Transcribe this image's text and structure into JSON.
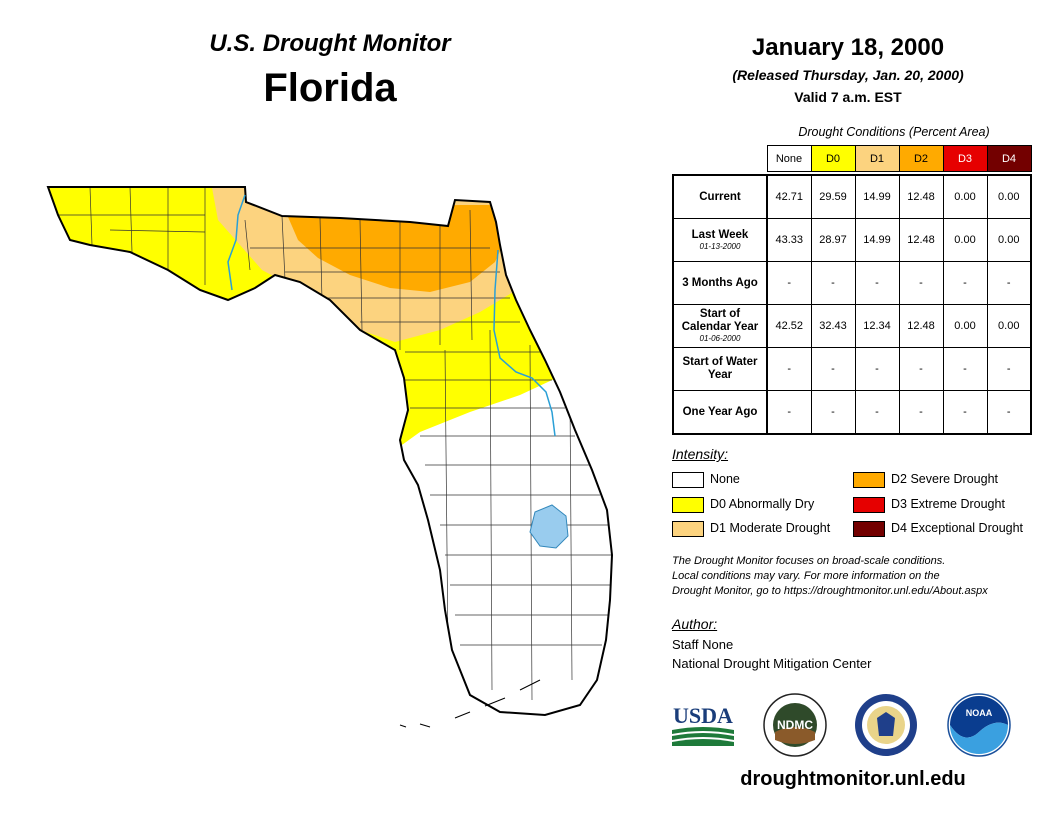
{
  "header": {
    "title": "U.S. Drought Monitor",
    "state": "Florida",
    "date": "January 18, 2000",
    "released": "(Released Thursday, Jan. 20, 2000)",
    "valid": "Valid 7 a.m. EST"
  },
  "table": {
    "caption": "Drought Conditions (Percent Area)",
    "columns": [
      "None",
      "D0",
      "D1",
      "D2",
      "D3",
      "D4"
    ],
    "column_colors": [
      "#ffffff",
      "#ffff00",
      "#fcd37f",
      "#ffaa00",
      "#e60000",
      "#730000"
    ],
    "rows": [
      {
        "label": "Current",
        "sublabel": "",
        "values": [
          "42.71",
          "29.59",
          "14.99",
          "12.48",
          "0.00",
          "0.00"
        ]
      },
      {
        "label": "Last Week",
        "sublabel": "01-13-2000",
        "values": [
          "43.33",
          "28.97",
          "14.99",
          "12.48",
          "0.00",
          "0.00"
        ]
      },
      {
        "label": "3 Months Ago",
        "sublabel": "",
        "values": [
          "-",
          "-",
          "-",
          "-",
          "-",
          "-"
        ]
      },
      {
        "label": "Start of Calendar Year",
        "sublabel": "01-06-2000",
        "values": [
          "42.52",
          "32.43",
          "12.34",
          "12.48",
          "0.00",
          "0.00"
        ]
      },
      {
        "label": "Start of Water Year",
        "sublabel": "",
        "values": [
          "-",
          "-",
          "-",
          "-",
          "-",
          "-"
        ]
      },
      {
        "label": "One Year Ago",
        "sublabel": "",
        "values": [
          "-",
          "-",
          "-",
          "-",
          "-",
          "-"
        ]
      }
    ]
  },
  "legend": {
    "title": "Intensity:",
    "items": [
      {
        "label": "None",
        "color": "#ffffff"
      },
      {
        "label": "D0 Abnormally Dry",
        "color": "#ffff00"
      },
      {
        "label": "D1 Moderate Drought",
        "color": "#fcd37f"
      },
      {
        "label": "D2 Severe Drought",
        "color": "#ffaa00"
      },
      {
        "label": "D3 Extreme Drought",
        "color": "#e60000"
      },
      {
        "label": "D4 Exceptional Drought",
        "color": "#730000"
      }
    ]
  },
  "disclaimer": {
    "line1": "The Drought Monitor focuses on broad-scale conditions.",
    "line2": "Local conditions may vary. For more information on the",
    "line3": "Drought Monitor, go to https://droughtmonitor.unl.edu/About.aspx"
  },
  "author": {
    "title": "Author:",
    "name": "Staff None",
    "org": "National Drought Mitigation Center"
  },
  "logos": {
    "usda": "USDA",
    "ndmc": "NDMC",
    "noaa": "NOAA"
  },
  "website": "droughtmonitor.unl.edu",
  "map_colors": {
    "none": "#ffffff",
    "d0": "#ffff00",
    "d1": "#fcd37f",
    "d2": "#ffaa00",
    "water": "#99ccee",
    "river": "#2a9fd6"
  }
}
